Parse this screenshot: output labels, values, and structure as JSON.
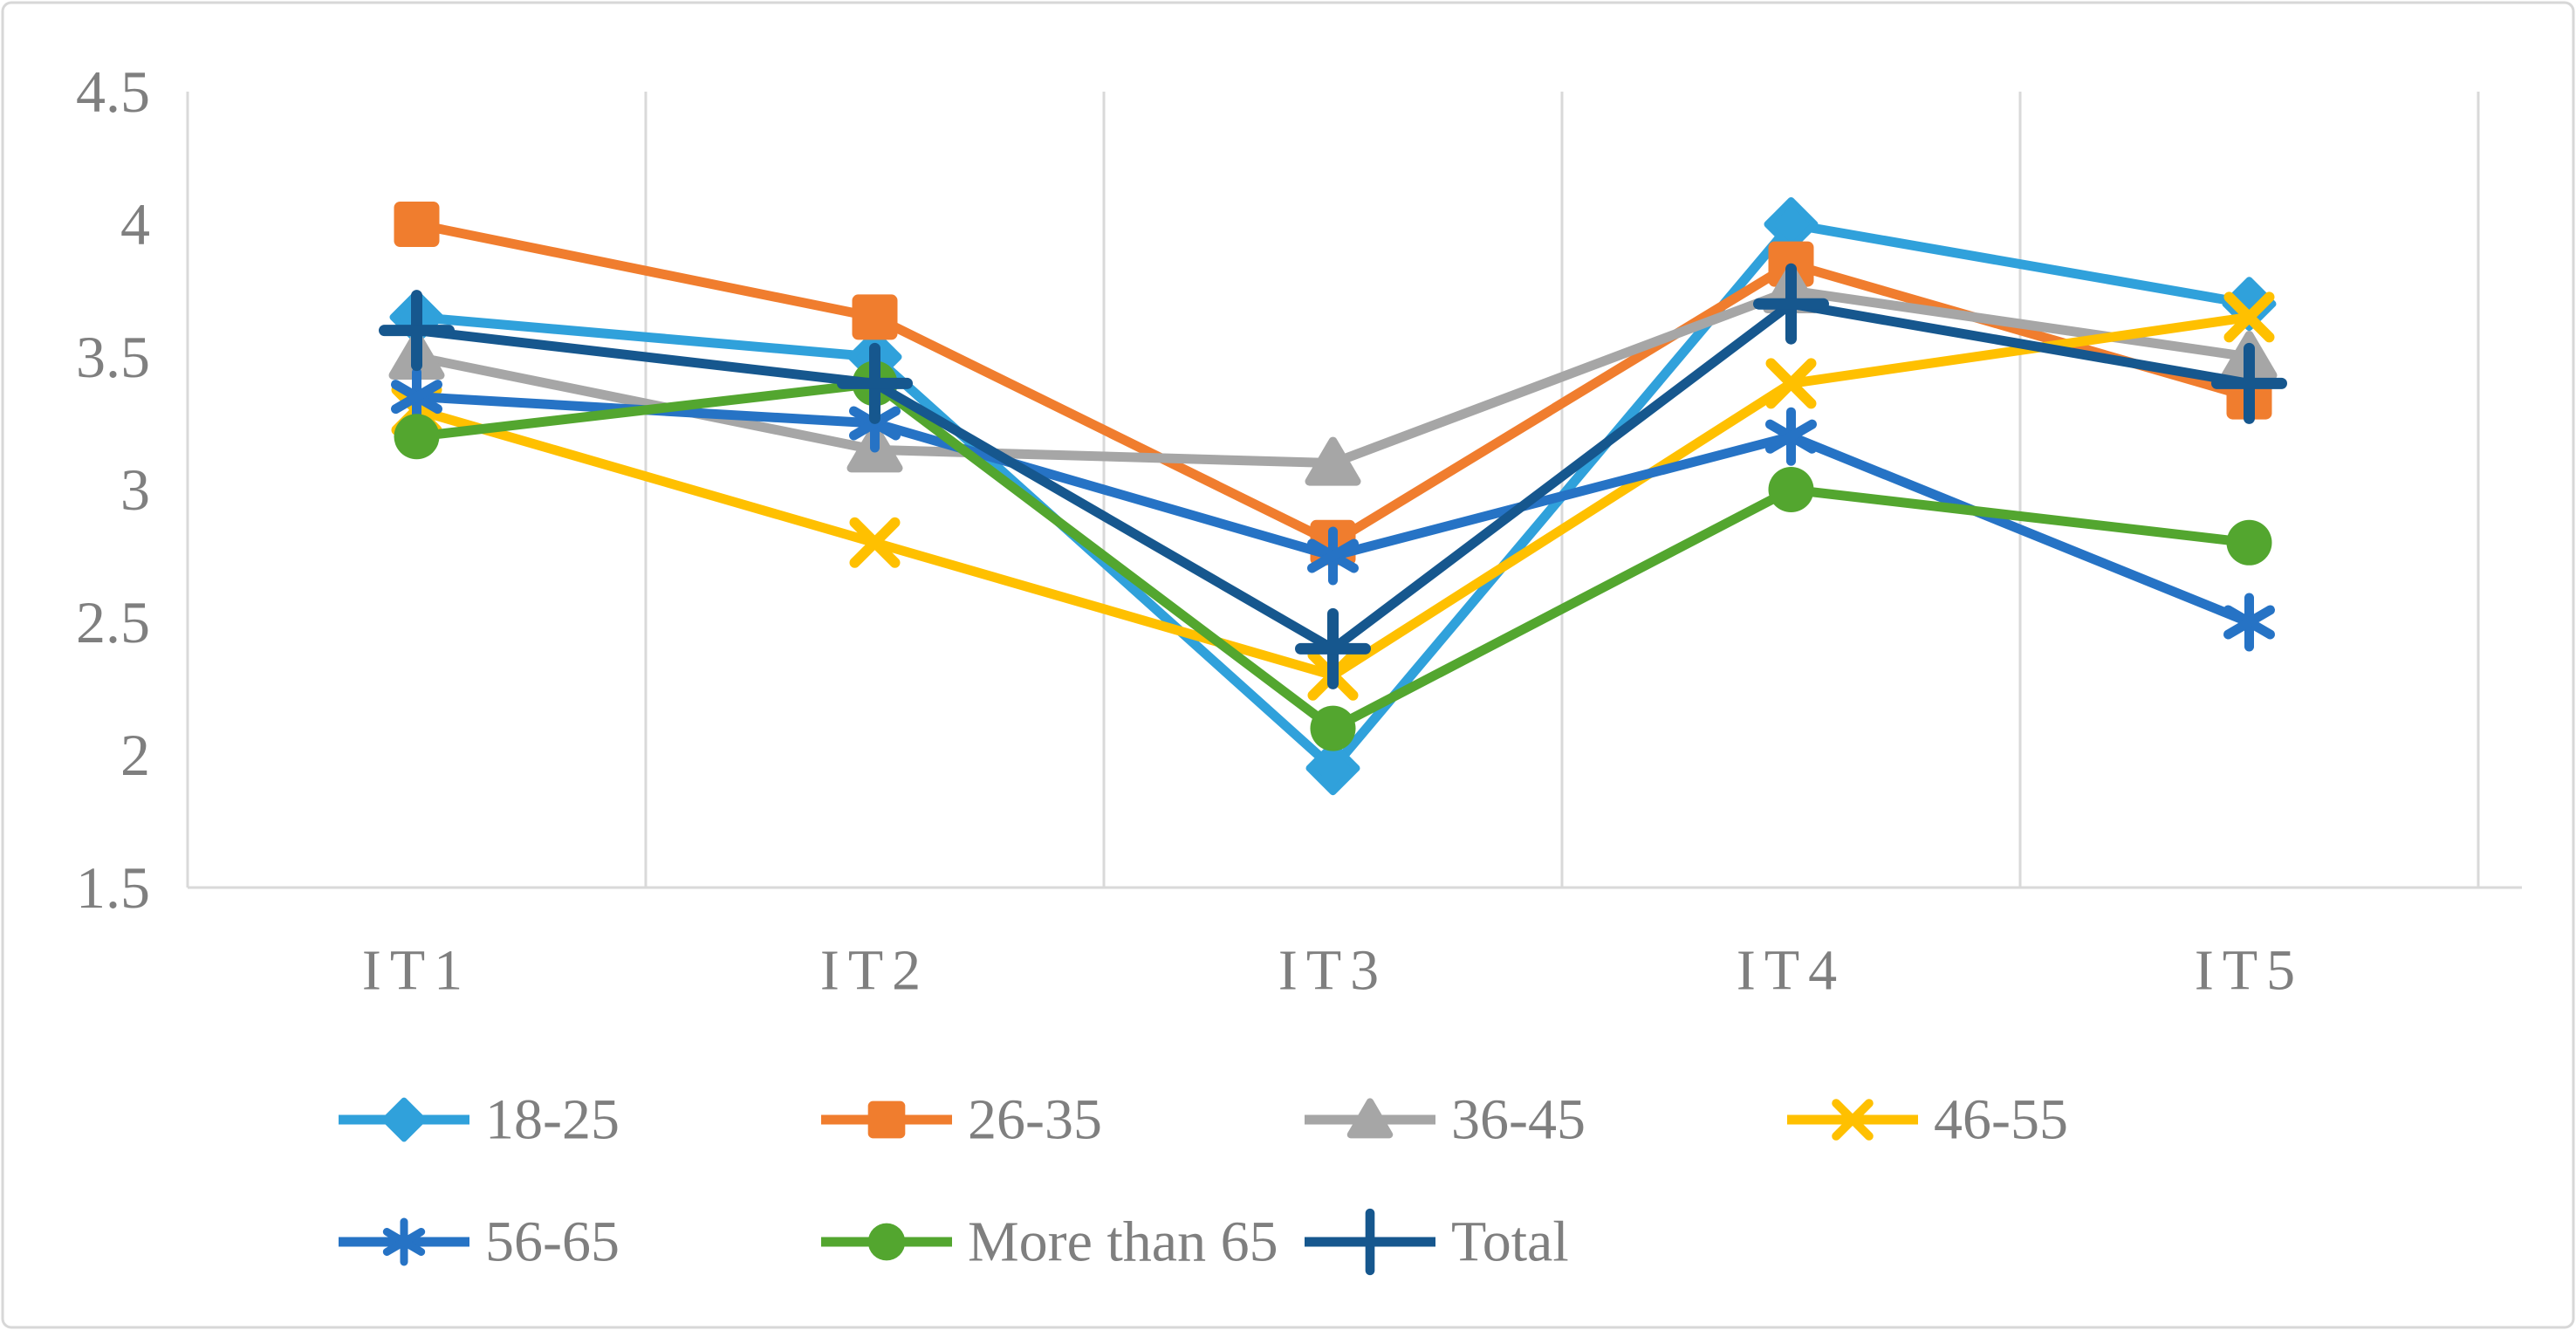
{
  "figure": {
    "background": "#ffffff",
    "border_color": "#d7d7d7"
  },
  "chart_data": {
    "type": "line",
    "title": "",
    "xlabel": "",
    "ylabel": "",
    "categories": [
      "IT1",
      "IT2",
      "IT3",
      "IT4",
      "IT5"
    ],
    "series": [
      {
        "name": "18-25",
        "color": "#30A1DB",
        "marker": "diamond",
        "values": [
          3.65,
          3.5,
          1.95,
          4.0,
          3.7
        ]
      },
      {
        "name": "26-35",
        "color": "#F07D2E",
        "marker": "square",
        "values": [
          4.0,
          3.65,
          2.8,
          3.85,
          3.35
        ]
      },
      {
        "name": "36-45",
        "color": "#A6A6A6",
        "marker": "triangle",
        "values": [
          3.5,
          3.15,
          3.1,
          3.75,
          3.5
        ]
      },
      {
        "name": "46-55",
        "color": "#FFC000",
        "marker": "x",
        "values": [
          3.3,
          2.8,
          2.3,
          3.4,
          3.65
        ]
      },
      {
        "name": "56-65",
        "color": "#2673C5",
        "marker": "asterisk",
        "values": [
          3.35,
          3.25,
          2.75,
          3.2,
          2.5
        ]
      },
      {
        "name": "More than 65",
        "color": "#53A62F",
        "marker": "circle",
        "values": [
          3.2,
          3.4,
          2.1,
          3.0,
          2.8
        ]
      },
      {
        "name": "Total",
        "color": "#16578E",
        "marker": "plus",
        "values": [
          3.6,
          3.4,
          2.4,
          3.7,
          3.4
        ]
      }
    ],
    "ylim": [
      1.5,
      4.5
    ],
    "ytick_step": 0.5,
    "yticks": [
      "4.5",
      "4",
      "3.5",
      "3",
      "2.5",
      "2",
      "1.5"
    ],
    "grid": "vertical-only",
    "gridline_color": "#d9d9d9",
    "axis_text_color": "#7f7f7f",
    "legend_position": "bottom"
  }
}
